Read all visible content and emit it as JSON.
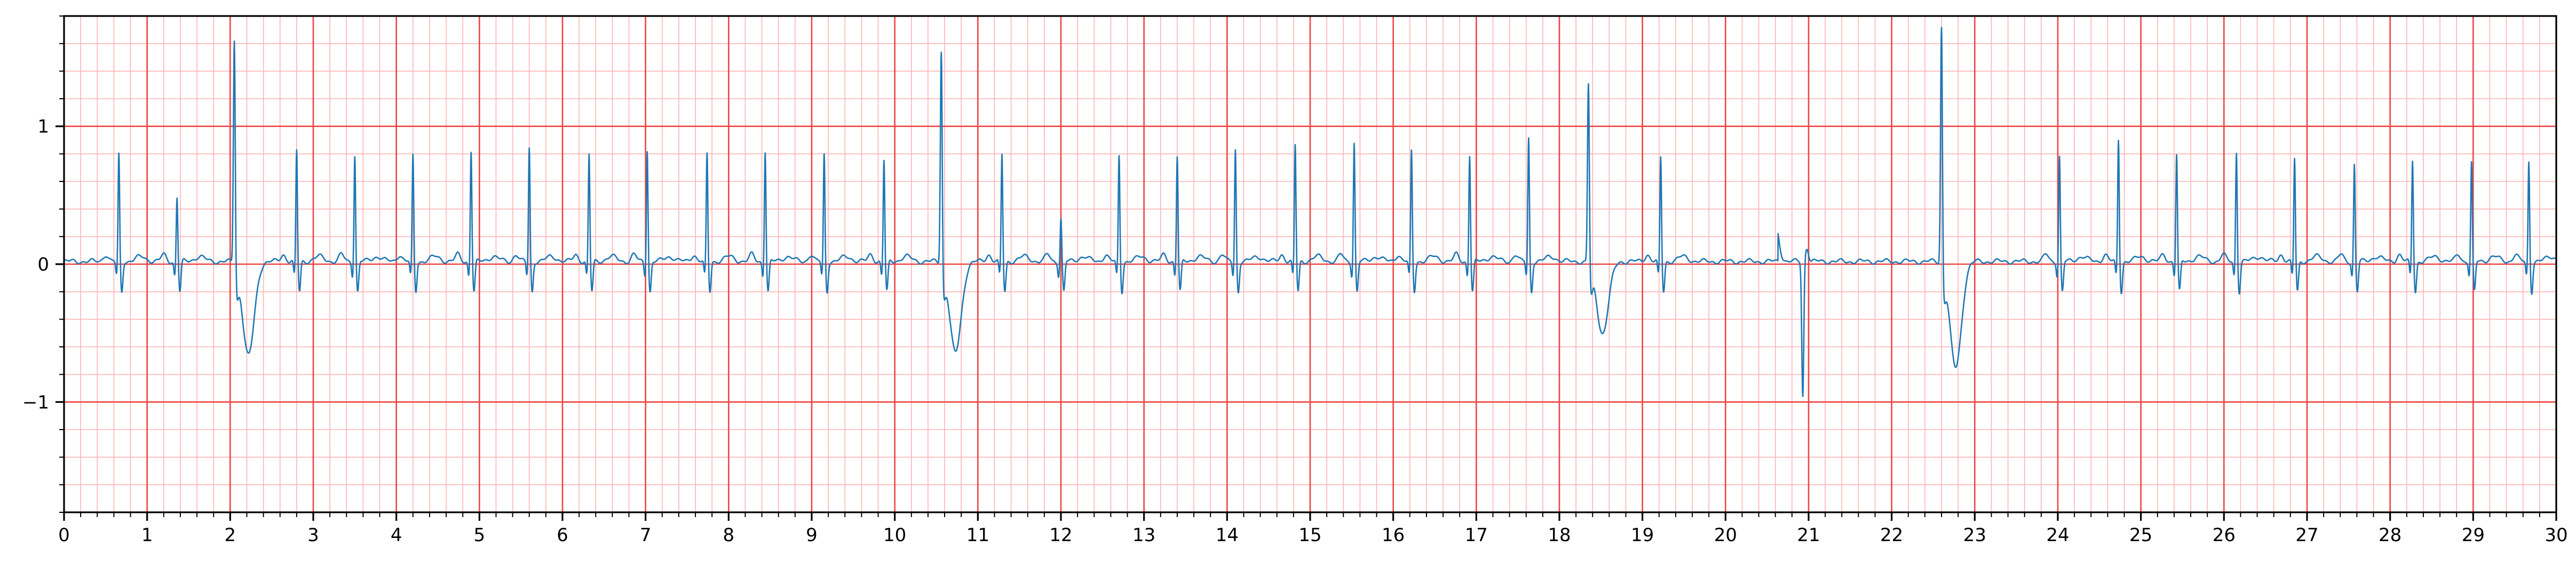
{
  "chart_data": {
    "type": "line",
    "title": "",
    "xlabel": "",
    "ylabel": "",
    "xlim": [
      0,
      30
    ],
    "ylim": [
      -1.8,
      1.8
    ],
    "grid": true,
    "grid_major_x_step": 1,
    "grid_minor_x_step": 0.2,
    "grid_major_y_step": 1,
    "grid_minor_y_step": 0.2,
    "grid_major_color": "#ee4444",
    "grid_minor_color": "#ffb3b3",
    "x_tick_labels": [
      "0",
      "1",
      "2",
      "3",
      "4",
      "5",
      "6",
      "7",
      "8",
      "9",
      "10",
      "11",
      "12",
      "13",
      "14",
      "15",
      "16",
      "17",
      "18",
      "19",
      "20",
      "21",
      "22",
      "23",
      "24",
      "25",
      "26",
      "27",
      "28",
      "29",
      "30"
    ],
    "y_tick_labels": [
      {
        "value": 1,
        "label": "1"
      },
      {
        "value": 0,
        "label": "0"
      },
      {
        "value": -1,
        "label": "−1"
      }
    ],
    "series": [
      {
        "color": "#1f77b4",
        "beats": [
          {
            "t": 0.66,
            "r": 0.78
          },
          {
            "t": 1.36,
            "r": 0.47
          },
          {
            "t": 2.05,
            "r": 1.7,
            "ectopic": true,
            "trough": -0.68
          },
          {
            "t": 2.8,
            "r": 0.81
          },
          {
            "t": 3.5,
            "r": 0.78
          },
          {
            "t": 4.2,
            "r": 0.77
          },
          {
            "t": 4.9,
            "r": 0.81
          },
          {
            "t": 5.6,
            "r": 0.83
          },
          {
            "t": 6.32,
            "r": 0.78
          },
          {
            "t": 7.02,
            "r": 0.82
          },
          {
            "t": 7.74,
            "r": 0.78
          },
          {
            "t": 8.44,
            "r": 0.81
          },
          {
            "t": 9.15,
            "r": 0.78
          },
          {
            "t": 9.87,
            "r": 0.74
          },
          {
            "t": 10.56,
            "r": 1.62,
            "ectopic": true,
            "trough": -0.66
          },
          {
            "t": 11.29,
            "r": 0.78
          },
          {
            "t": 12.0,
            "r": 0.32
          },
          {
            "t": 12.7,
            "r": 0.77
          },
          {
            "t": 13.4,
            "r": 0.77
          },
          {
            "t": 14.1,
            "r": 0.82
          },
          {
            "t": 14.82,
            "r": 0.85
          },
          {
            "t": 15.53,
            "r": 0.87
          },
          {
            "t": 16.22,
            "r": 0.8
          },
          {
            "t": 16.92,
            "r": 0.78
          },
          {
            "t": 17.63,
            "r": 0.9
          },
          {
            "t": 18.35,
            "r": 1.37,
            "ectopic": true,
            "trough": -0.52
          },
          {
            "t": 19.22,
            "r": 0.76
          },
          {
            "t": 20.93,
            "r": 0.1,
            "trough": -0.98
          },
          {
            "t": 22.6,
            "r": 1.8,
            "ectopic": true,
            "trough": -0.77
          },
          {
            "t": 24.02,
            "r": 0.77
          },
          {
            "t": 24.73,
            "r": 0.89
          },
          {
            "t": 25.43,
            "r": 0.78
          },
          {
            "t": 26.15,
            "r": 0.8
          },
          {
            "t": 26.85,
            "r": 0.75
          },
          {
            "t": 27.57,
            "r": 0.71
          },
          {
            "t": 28.27,
            "r": 0.74
          },
          {
            "t": 28.98,
            "r": 0.72
          },
          {
            "t": 29.67,
            "r": 0.73
          }
        ]
      }
    ]
  }
}
